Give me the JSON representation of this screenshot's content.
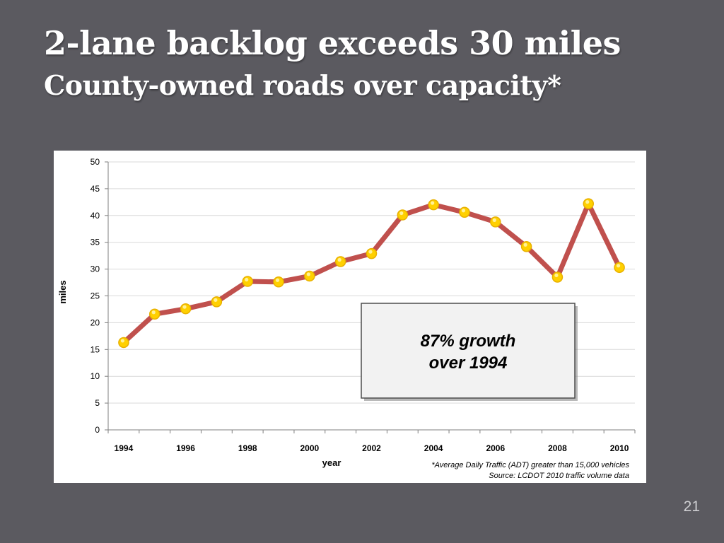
{
  "slide": {
    "title": "2-lane backlog exceeds 30 miles",
    "subtitle": "County-owned roads over capacity*",
    "page_number": "21"
  },
  "chart_data": {
    "type": "line",
    "xlabel": "year",
    "ylabel": "miles",
    "ylim": [
      0,
      50
    ],
    "y_ticks": [
      0,
      5,
      10,
      15,
      20,
      25,
      30,
      35,
      40,
      45,
      50
    ],
    "x_tick_labels": [
      "1994",
      "1996",
      "1998",
      "2000",
      "2002",
      "2004",
      "2006",
      "2008",
      "2010"
    ],
    "grid": "horizontal",
    "series": [
      {
        "x": [
          1994,
          1995,
          1996,
          1997,
          1998,
          1999,
          2000,
          2001,
          2002,
          2003,
          2004,
          2005,
          2006,
          2007,
          2008,
          2009,
          2010
        ],
        "values": [
          16.3,
          21.6,
          22.6,
          23.9,
          27.7,
          27.6,
          28.7,
          31.4,
          32.9,
          40.1,
          42.0,
          40.6,
          38.8,
          34.2,
          28.5,
          42.2,
          30.3
        ]
      }
    ],
    "colors": {
      "line": "#c0504d",
      "marker": "#ffd000",
      "marker_edge": "#e8b000"
    },
    "callout": "87% growth over 1994",
    "callout_lines": [
      "87% growth",
      "over 1994"
    ],
    "footnote": "*Average Daily Traffic (ADT) greater than 15,000 vehicles",
    "source": "Source:  LCDOT 2010 traffic volume data"
  }
}
